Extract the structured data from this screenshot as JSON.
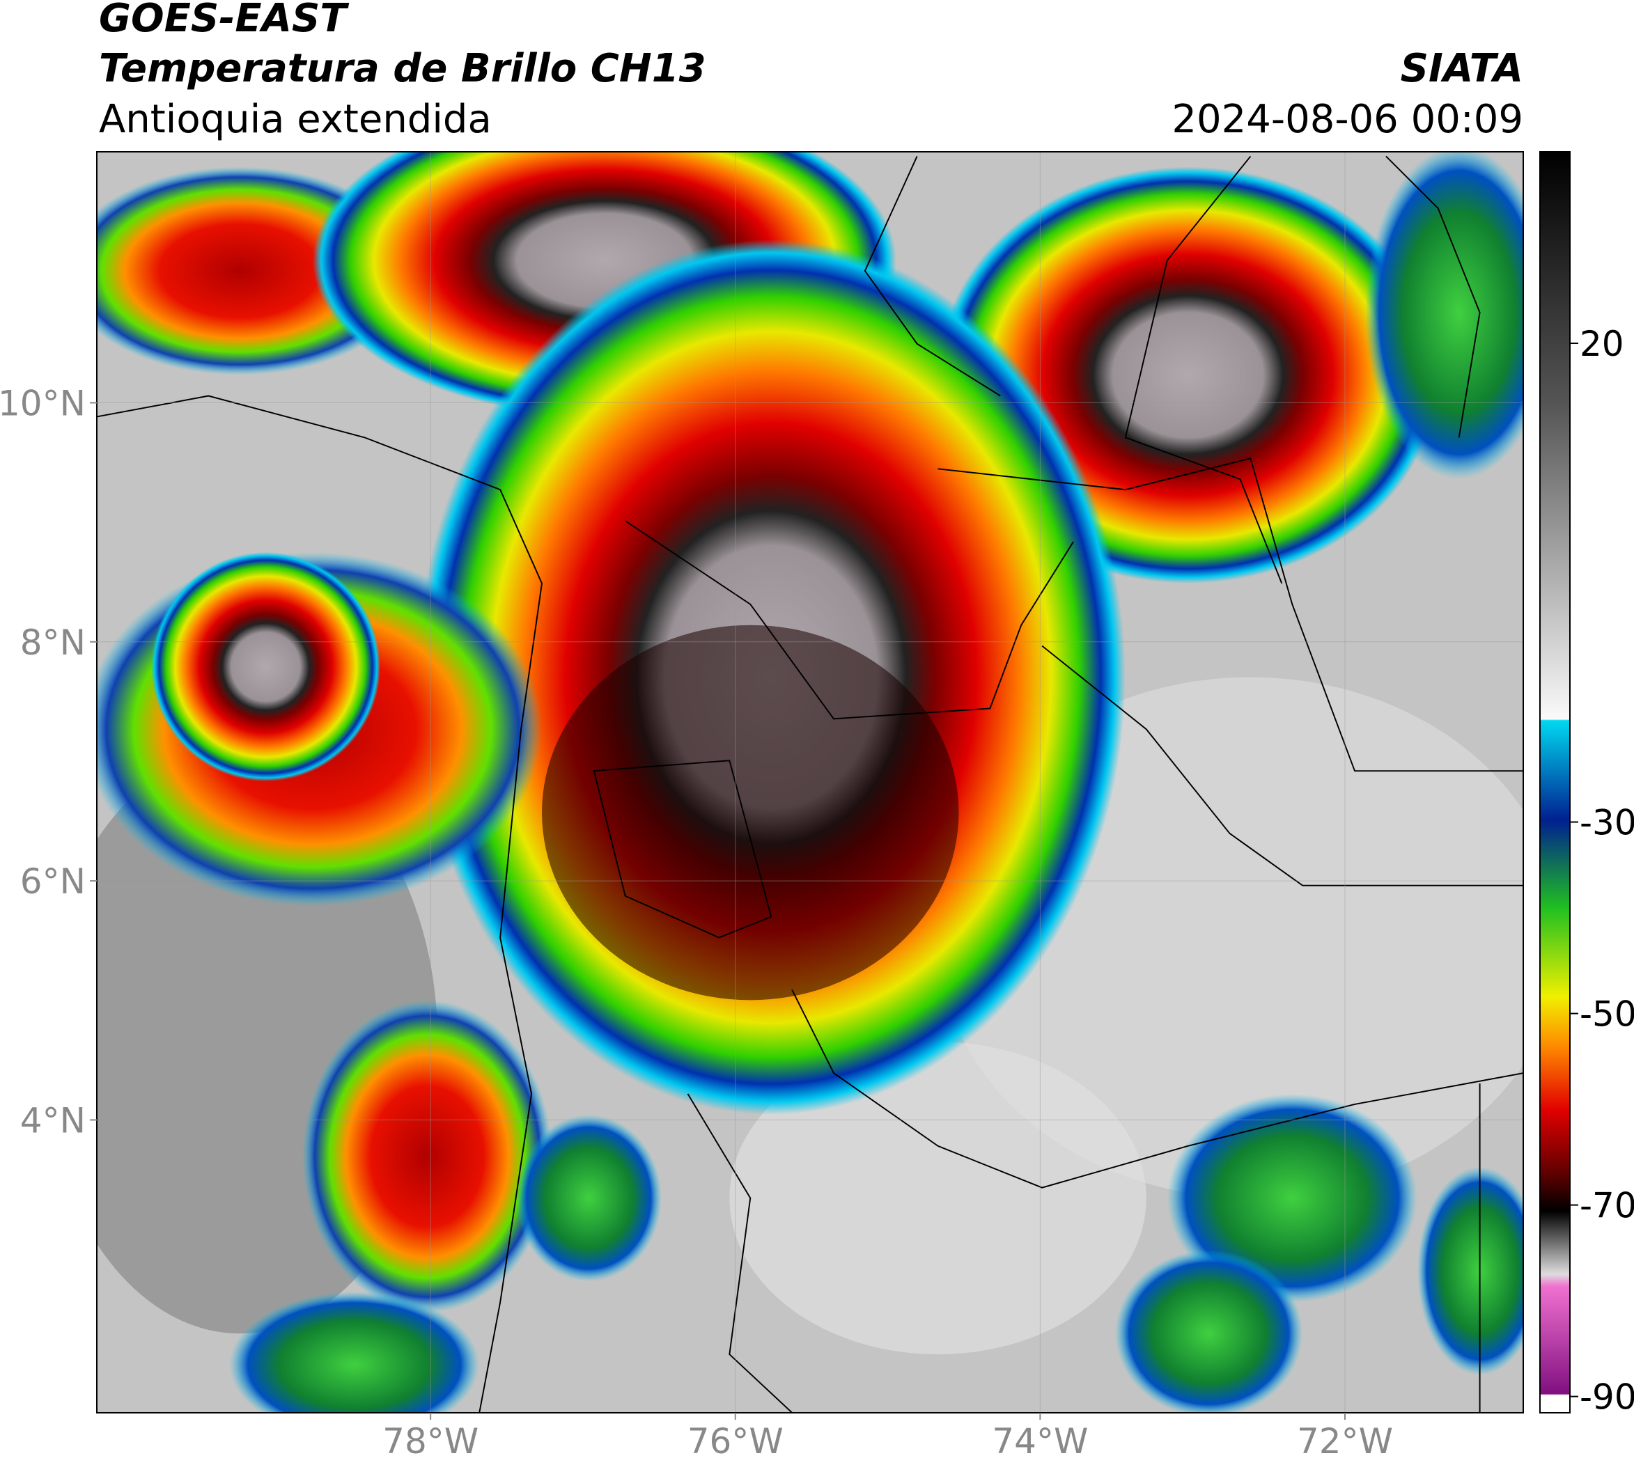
{
  "header": {
    "title": "GOES-EAST",
    "subtitle": "Temperatura de Brillo CH13",
    "region": "Antioquia extendida",
    "source": "SIATA",
    "datetime": "2024-08-06 00:09"
  },
  "map": {
    "xlim": [
      -80.19,
      -70.83
    ],
    "ylim": [
      1.55,
      12.1
    ],
    "xticks": [
      {
        "value": -78,
        "label": "78°W"
      },
      {
        "value": -76,
        "label": "76°W"
      },
      {
        "value": -74,
        "label": "74°W"
      },
      {
        "value": -72,
        "label": "72°W"
      }
    ],
    "yticks": [
      {
        "value": 4,
        "label": "4°N"
      },
      {
        "value": 6,
        "label": "6°N"
      },
      {
        "value": 8,
        "label": "8°N"
      },
      {
        "value": 10,
        "label": "10°N"
      }
    ],
    "grid": true
  },
  "colorbar": {
    "lim": [
      -91.7,
      40
    ],
    "ticks": [
      20,
      -30,
      -50,
      -70,
      -90
    ]
  }
}
